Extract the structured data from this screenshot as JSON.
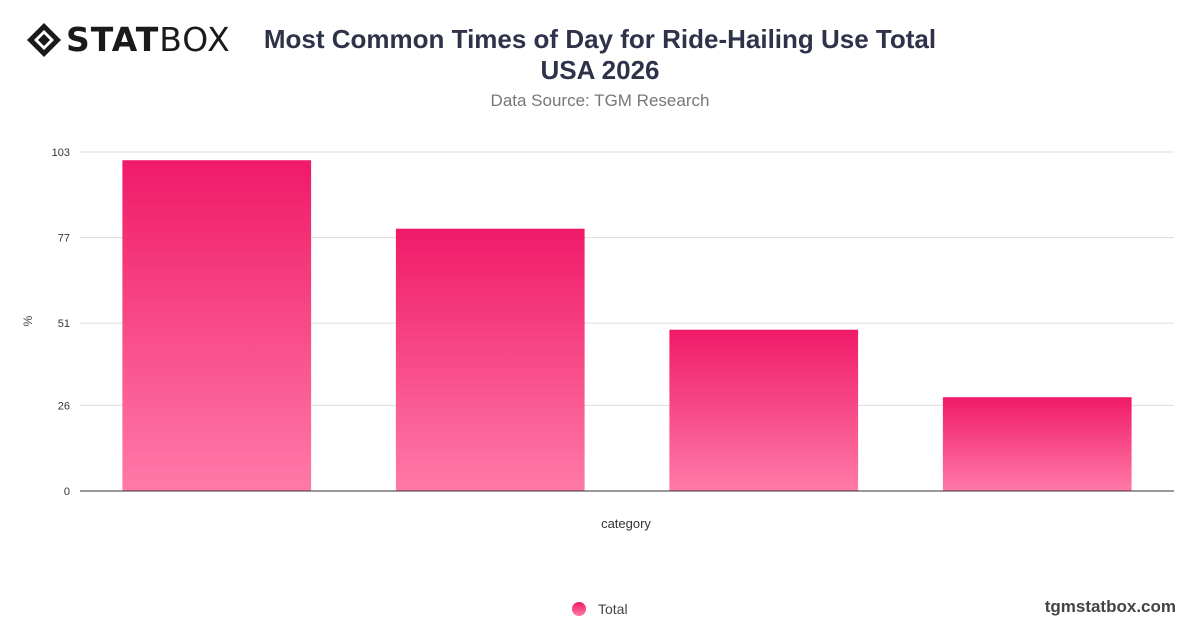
{
  "brand": {
    "logo_bold": "STAT",
    "logo_light": "BOX",
    "site": "tgmstatbox.com"
  },
  "header": {
    "title_line1": "Most Common Times of Day for Ride-Hailing Use Total",
    "title_line2": "USA 2026",
    "subtitle": "Data Source: TGM Research"
  },
  "colors": {
    "bar_top": "#f01a68",
    "bar_bottom": "#ff7aa8",
    "title": "#2f3349",
    "grid": "#dddddd",
    "axis": "#333333"
  },
  "chart_data": {
    "type": "bar",
    "title": "Most Common Times of Day for Ride-Hailing Use Total USA 2026",
    "subtitle": "Data Source: TGM Research",
    "xlabel": "category",
    "ylabel": "%",
    "categories": [
      "",
      "",
      "",
      ""
    ],
    "series": [
      {
        "name": "Total",
        "values": [
          100.5,
          79.7,
          49,
          28.5
        ]
      }
    ],
    "yticks": [
      0,
      26,
      51,
      77,
      103
    ],
    "ylim": [
      0,
      103
    ],
    "grid": true,
    "legend": "bottom-center"
  }
}
